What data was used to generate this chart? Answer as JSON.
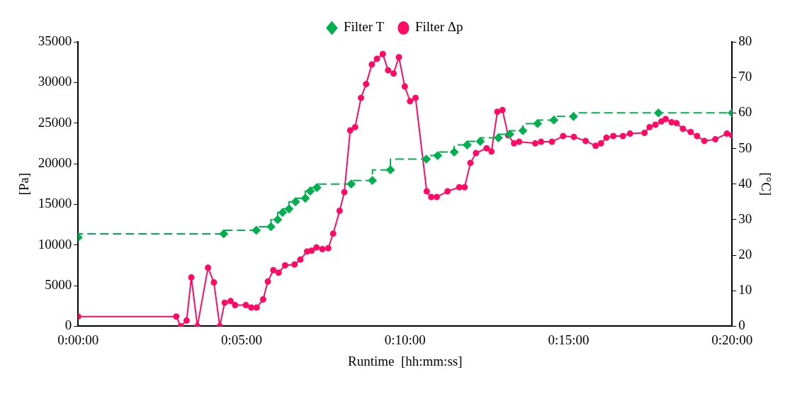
{
  "chart_data": {
    "type": "line",
    "xlabel": "Runtime  [hh:mm:ss]",
    "ylabel": "[Pa]",
    "y2label": "[°C]",
    "legend": "top",
    "grid": false,
    "xlim": [
      0,
      0.33333
    ],
    "xticks": [
      {
        "value": 0,
        "label": "0:00:00"
      },
      {
        "value": 0.08333,
        "label": "0:05:00"
      },
      {
        "value": 0.16667,
        "label": "0:10:00"
      },
      {
        "value": 0.25,
        "label": "0:15:00"
      },
      {
        "value": 0.33333,
        "label": "0:20:00"
      }
    ],
    "ylim": [
      0,
      35000
    ],
    "yticks": [
      0,
      5000,
      10000,
      15000,
      20000,
      25000,
      30000,
      35000
    ],
    "y2lim": [
      0,
      80
    ],
    "y2ticks": [
      0,
      10,
      20,
      30,
      40,
      50,
      60,
      70,
      80
    ],
    "series": [
      {
        "name": "Filter Δp",
        "type": "line",
        "color": "#ff0a64",
        "marker": "circle",
        "line_style": "solid",
        "x": [
          0,
          0.05,
          0.0523,
          0.0553,
          0.0577,
          0.0608,
          0.0662,
          0.0692,
          0.0722,
          0.0747,
          0.0777,
          0.08,
          0.0855,
          0.0883,
          0.091,
          0.0943,
          0.0967,
          0.0995,
          0.1022,
          0.1055,
          0.1103,
          0.1133,
          0.1167,
          0.119,
          0.1215,
          0.1245,
          0.1275,
          0.13,
          0.1333,
          0.1357,
          0.1387,
          0.1412,
          0.1442,
          0.1468,
          0.1497,
          0.1523,
          0.1553,
          0.158,
          0.1608,
          0.1635,
          0.1665,
          0.1692,
          0.172,
          0.1777,
          0.18,
          0.1828,
          0.1883,
          0.1943,
          0.197,
          0.2,
          0.2028,
          0.2082,
          0.2107,
          0.2137,
          0.2163,
          0.2192,
          0.2222,
          0.2248,
          0.233,
          0.236,
          0.2415,
          0.2472,
          0.2527,
          0.2587,
          0.2638,
          0.2665,
          0.2693,
          0.2728,
          0.2777,
          0.2813,
          0.2887,
          0.2913,
          0.2943,
          0.2973,
          0.2995,
          0.3025,
          0.305,
          0.3083,
          0.3122,
          0.3155,
          0.3192,
          0.3248,
          0.3307,
          0.33333
        ],
        "values": [
          1200,
          1200,
          0,
          700,
          6000,
          0,
          7200,
          5400,
          0,
          2900,
          3100,
          2600,
          2600,
          2300,
          2300,
          3300,
          5500,
          6900,
          6600,
          7500,
          7600,
          8200,
          9200,
          9300,
          9700,
          9500,
          9600,
          11400,
          14200,
          16500,
          24100,
          24500,
          28100,
          29800,
          32200,
          32900,
          33500,
          31500,
          31100,
          33100,
          29500,
          27700,
          28100,
          16600,
          15900,
          15900,
          16600,
          17100,
          17100,
          20100,
          21300,
          21900,
          21500,
          26400,
          26600,
          23500,
          22500,
          22700,
          22500,
          22700,
          22700,
          23400,
          23300,
          22800,
          22200,
          22500,
          23200,
          23400,
          23400,
          23700,
          23800,
          24500,
          24800,
          25200,
          25500,
          25100,
          25000,
          24300,
          23900,
          23400,
          22800,
          23000,
          23700,
          23500
        ]
      },
      {
        "name": "Filter T",
        "type": "step",
        "axis": "y2",
        "color": "#00b050",
        "marker": "diamond",
        "line_style": "dashed",
        "x": [
          0,
          0.0742,
          0.0908,
          0.0983,
          0.1017,
          0.1042,
          0.1075,
          0.1108,
          0.1158,
          0.1183,
          0.1217,
          0.1392,
          0.15,
          0.1592,
          0.1775,
          0.1833,
          0.1917,
          0.1983,
          0.205,
          0.2142,
          0.22,
          0.2267,
          0.2342,
          0.2425,
          0.2525,
          0.2958,
          0.33333
        ],
        "values": [
          25,
          26,
          27,
          28,
          30,
          32,
          33,
          35,
          36,
          38,
          39,
          40,
          41,
          44,
          47,
          48,
          49,
          51,
          52,
          53,
          54,
          55,
          57,
          58,
          59,
          60,
          60
        ]
      }
    ]
  }
}
